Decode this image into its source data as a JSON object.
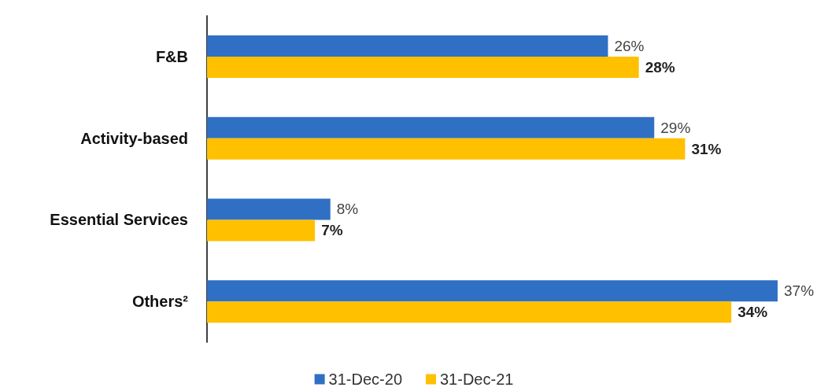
{
  "chart_data": {
    "type": "bar",
    "orientation": "horizontal",
    "categories": [
      "F&B",
      "Activity-based",
      "Essential Services",
      "Others²"
    ],
    "series": [
      {
        "name": "31-Dec-20",
        "color": "#3070c4",
        "values": [
          26,
          29,
          8,
          37
        ],
        "value_labels": [
          "26%",
          "29%",
          "8%",
          "37%"
        ]
      },
      {
        "name": "31-Dec-21",
        "color": "#ffc000",
        "values": [
          28,
          31,
          7,
          34
        ],
        "value_labels": [
          "28%",
          "31%",
          "7%",
          "34%"
        ]
      }
    ],
    "legend": "bottom",
    "grid": false,
    "tick_labels": "y"
  }
}
